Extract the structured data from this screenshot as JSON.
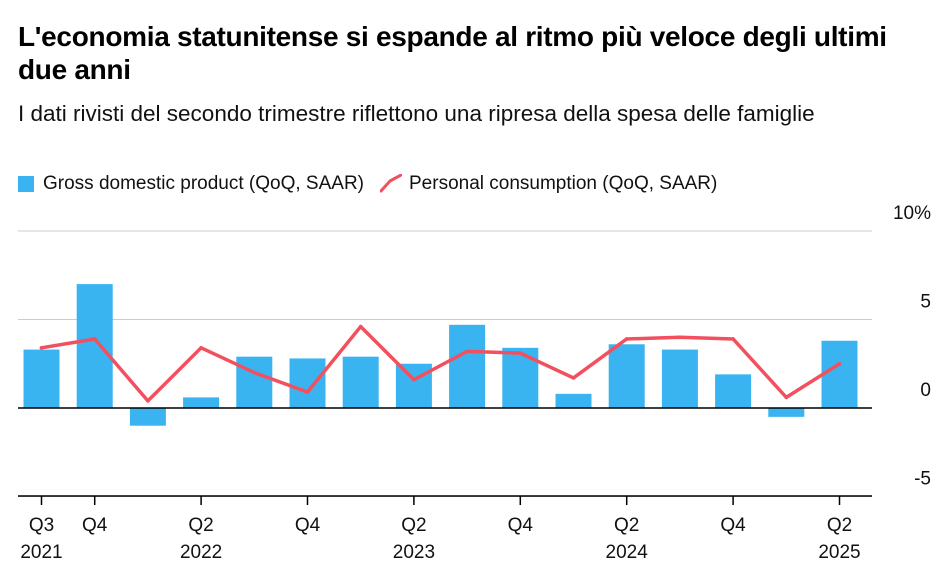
{
  "chart_data": {
    "type": "bar",
    "title": "L'economia statunitense si espande al ritmo più veloce degli ultimi due anni",
    "subtitle": "I dati rivisti del secondo trimestre riflettono una ripresa della spesa delle famiglie",
    "legend": {
      "bar_label": "Gross domestic product (QoQ, SAAR)",
      "line_label": "Personal consumption (QoQ, SAAR)"
    },
    "colors": {
      "bar": "#39b4f0",
      "line": "#f2505e",
      "grid": "#cccccc",
      "axis": "#000000"
    },
    "ylim": [
      -5,
      10
    ],
    "y_ticks": [
      {
        "value": 10,
        "label": "10%"
      },
      {
        "value": 5,
        "label": "5"
      },
      {
        "value": 0,
        "label": "0"
      },
      {
        "value": -5,
        "label": "-5"
      }
    ],
    "periods": [
      "Q3 2021",
      "Q4 2021",
      "Q1 2022",
      "Q2 2022",
      "Q3 2022",
      "Q4 2022",
      "Q1 2023",
      "Q2 2023",
      "Q3 2023",
      "Q4 2023",
      "Q1 2024",
      "Q2 2024",
      "Q3 2024",
      "Q4 2024",
      "Q1 2025",
      "Q2 2025"
    ],
    "x_tick_labels": [
      {
        "index": 0,
        "quarter": "Q3",
        "year": "2021"
      },
      {
        "index": 1,
        "quarter": "Q4",
        "year": ""
      },
      {
        "index": 3,
        "quarter": "Q2",
        "year": "2022"
      },
      {
        "index": 5,
        "quarter": "Q4",
        "year": ""
      },
      {
        "index": 7,
        "quarter": "Q2",
        "year": "2023"
      },
      {
        "index": 9,
        "quarter": "Q4",
        "year": ""
      },
      {
        "index": 11,
        "quarter": "Q2",
        "year": "2024"
      },
      {
        "index": 13,
        "quarter": "Q4",
        "year": ""
      },
      {
        "index": 15,
        "quarter": "Q2",
        "year": "2025"
      }
    ],
    "series": [
      {
        "name": "Gross domestic product (QoQ, SAAR)",
        "kind": "bar",
        "values": [
          3.3,
          7.0,
          -1.0,
          0.6,
          2.9,
          2.8,
          2.9,
          2.5,
          4.7,
          3.4,
          0.8,
          3.6,
          3.3,
          1.9,
          -0.5,
          3.8
        ]
      },
      {
        "name": "Personal consumption (QoQ, SAAR)",
        "kind": "line",
        "values": [
          3.4,
          3.9,
          0.4,
          3.4,
          2.0,
          0.9,
          4.6,
          1.6,
          3.2,
          3.1,
          1.7,
          3.9,
          4.0,
          3.9,
          0.6,
          2.5
        ]
      }
    ]
  }
}
